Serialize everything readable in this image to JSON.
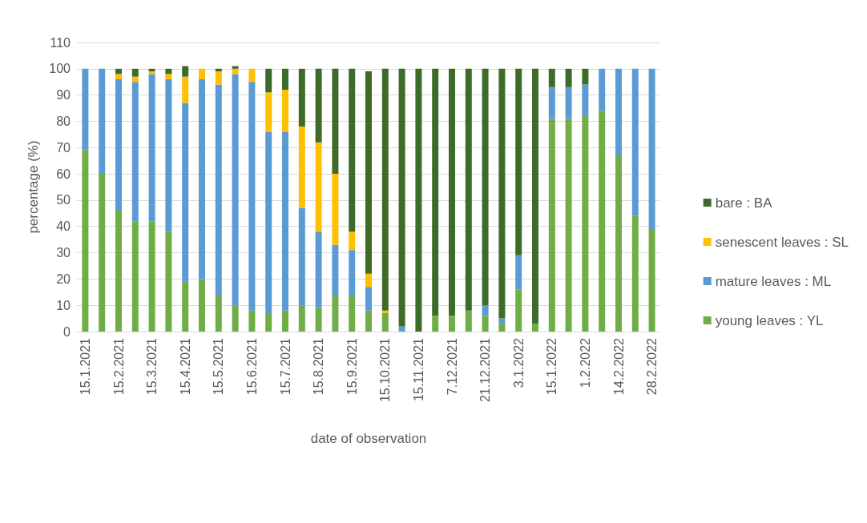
{
  "chart_data": {
    "type": "bar",
    "stacked": true,
    "xlabel": "date of observation",
    "ylabel": "percentage (%)",
    "categories": [
      "15.1.2021",
      null,
      "15.2.2021",
      null,
      "15.3.2021",
      null,
      "15.4.2021",
      null,
      "15.5.2021",
      null,
      "15.6.2021",
      null,
      "15.7.2021",
      null,
      "15.8.2021",
      null,
      "15.9.2021",
      null,
      "15.10.2021",
      null,
      "15.11.2021",
      null,
      "7.12.2021",
      null,
      "21.12.2021",
      null,
      "3.1.2022",
      null,
      "15.1.2022",
      null,
      "1.2.2022",
      null,
      "14.2.2022",
      null,
      "28.2.2022"
    ],
    "series": [
      {
        "name": "young leaves : YL",
        "color": "#70ad47",
        "values": [
          69,
          60,
          46,
          42,
          42,
          38,
          19,
          20,
          14,
          10,
          8,
          7,
          8,
          10,
          9,
          14,
          14,
          8,
          7,
          0,
          0,
          6,
          6,
          8,
          6,
          3,
          16,
          3,
          81,
          81,
          82,
          84,
          67,
          44,
          39
        ]
      },
      {
        "name": "mature leaves : ML",
        "color": "#5b9bd5",
        "values": [
          31,
          40,
          50,
          53,
          56,
          58,
          68,
          76,
          80,
          88,
          87,
          69,
          68,
          37,
          29,
          19,
          17,
          9,
          0,
          2,
          0,
          0,
          0,
          0,
          4,
          2,
          13,
          0,
          12,
          12,
          12,
          16,
          33,
          56,
          61
        ]
      },
      {
        "name": "senescent leaves : SL",
        "color": "#ffc000",
        "values": [
          0,
          0,
          2,
          2,
          1,
          2,
          10,
          4,
          5,
          2,
          5,
          15,
          16,
          31,
          34,
          27,
          7,
          5,
          1,
          0,
          0,
          0,
          0,
          0,
          0,
          0,
          0,
          0,
          0,
          0,
          0,
          0,
          0,
          0,
          0
        ]
      },
      {
        "name": "bare : BA",
        "color": "#3e6b2a",
        "values": [
          0,
          0,
          2,
          3,
          1,
          2,
          4,
          0,
          1,
          1,
          0,
          9,
          8,
          22,
          28,
          40,
          62,
          77,
          92,
          98,
          100,
          94,
          94,
          92,
          90,
          95,
          71,
          97,
          7,
          7,
          6,
          0,
          0,
          0,
          0
        ]
      }
    ],
    "ylim": [
      0,
      110
    ],
    "yticks": [
      0,
      10,
      20,
      30,
      40,
      50,
      60,
      70,
      80,
      90,
      100,
      110
    ],
    "grid": "y",
    "legend": "right"
  }
}
